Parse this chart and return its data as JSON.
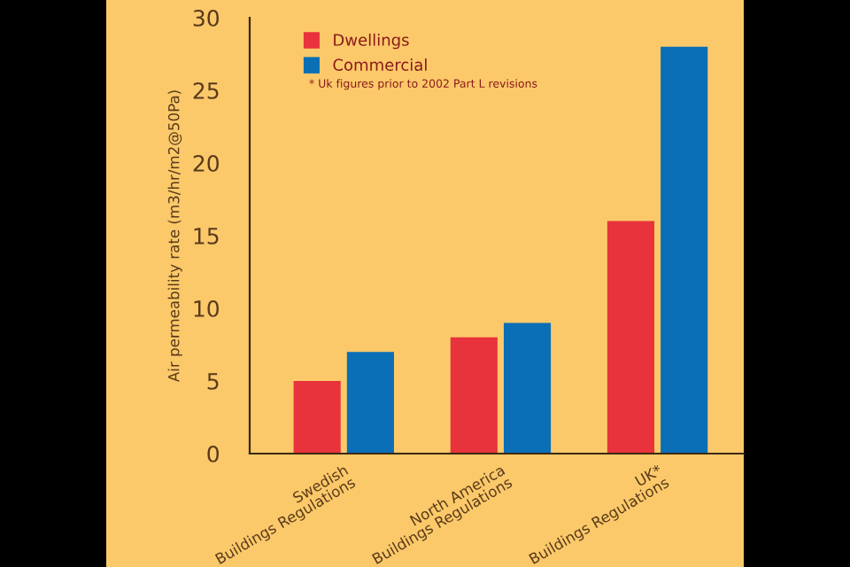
{
  "chart_data": {
    "type": "bar",
    "ylabel": "Air permeability rate (m3/hr/m2@50Pa)",
    "categories": [
      "Swedish\nBuildings Regulations",
      "North America\nBuildings Regulations",
      "UK*\nBuildings Regulations"
    ],
    "series": [
      {
        "name": "Dwellings",
        "color": "#e8323c",
        "values": [
          5,
          8,
          16
        ]
      },
      {
        "name": "Commercial",
        "color": "#0a6fb5",
        "values": [
          7,
          9,
          28
        ]
      }
    ],
    "ylim": [
      0,
      30
    ],
    "yticks": [
      0,
      5,
      10,
      15,
      20,
      25,
      30
    ],
    "grid": false,
    "legend": "top left",
    "annotations": [
      "* Uk figures prior to 2002 Part L revisions"
    ]
  }
}
